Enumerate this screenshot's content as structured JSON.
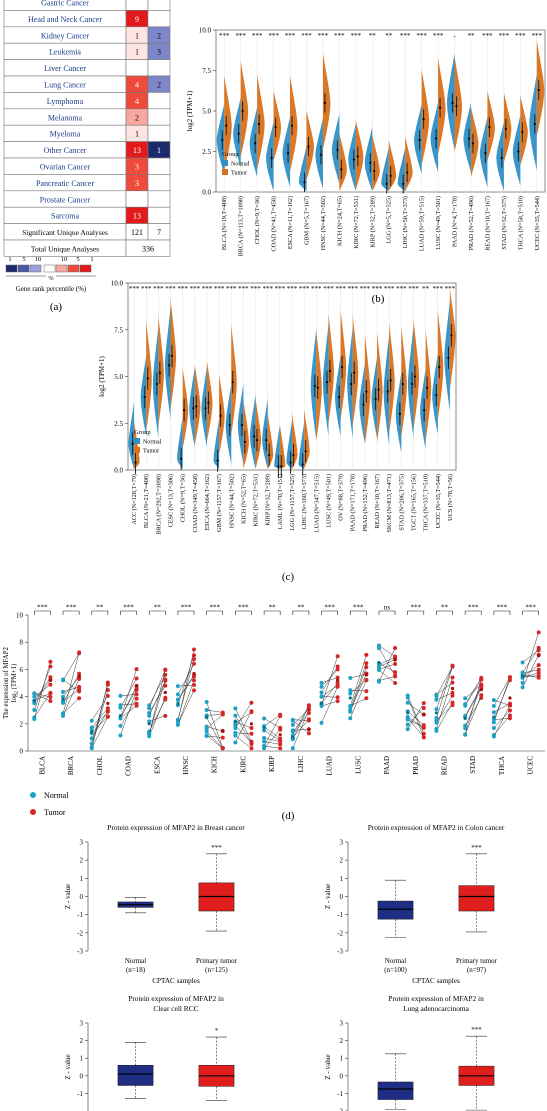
{
  "panel_labels": [
    "(a)",
    "(b)",
    "(c)",
    "(d)"
  ],
  "panel_a": {
    "rows": [
      {
        "label": "Gastric Cancer",
        "up": "",
        "down": ""
      },
      {
        "label": "Head and Neck Cancer",
        "up": "9",
        "down": ""
      },
      {
        "label": "Kidney Cancer",
        "up": "1",
        "down": "2"
      },
      {
        "label": "Leukemia",
        "up": "1",
        "down": "3"
      },
      {
        "label": "Liver Cancer",
        "up": "",
        "down": ""
      },
      {
        "label": "Lung Cancer",
        "up": "4",
        "down": "2"
      },
      {
        "label": "Lymphoma",
        "up": "4",
        "down": ""
      },
      {
        "label": "Melanoma",
        "up": "2",
        "down": ""
      },
      {
        "label": "Myeloma",
        "up": "1",
        "down": ""
      },
      {
        "label": "Other Cancer",
        "up": "13",
        "down": "1"
      },
      {
        "label": "Ovarian Cancer",
        "up": "3",
        "down": ""
      },
      {
        "label": "Pancreatic Cancer",
        "up": "3",
        "down": ""
      },
      {
        "label": "Prostate Cancer",
        "up": "",
        "down": ""
      },
      {
        "label": "Sarcoma",
        "up": "13",
        "down": ""
      }
    ],
    "sig_label": "Significant Unique Analyses",
    "sig_up": "121",
    "sig_down": "7",
    "total_label": "Total Unique Analyses",
    "total_value": "336",
    "legend_numbers": [
      "1",
      "5",
      "10",
      "10",
      "5",
      "1"
    ],
    "legend_percent": "%",
    "legend_caption": "Gene rank percentile (%)"
  },
  "chart_data": [
    {
      "id": "b",
      "type": "violin",
      "ylabel": "log2 (TPM+1)",
      "ylim": [
        0,
        10
      ],
      "yticks": [
        "0.0",
        "2.5",
        "5.0",
        "7.5",
        "10.0"
      ],
      "legend_title": "Group",
      "legend": [
        "Normal",
        "Tumor"
      ],
      "categories": [
        "BLCA (N=19,T=408)",
        "BRCA (N=113,T=1098)",
        "CHOL (N=9,T=36)",
        "COAD (N=41,T=458)",
        "ESCA (N=11,T=162)",
        "GBM (N=5,T=167)",
        "HNSC (N=44,T=502)",
        "KICH (N=24,T=65)",
        "KIRC (N=72,T=531)",
        "KIRP (N=32,T=289)",
        "LGG (N=5,T=525)",
        "LIHC (N=50,T=373)",
        "LUAD (N=59,T=515)",
        "LUSC (N=49,T=501)",
        "PAAD (N=4,T=178)",
        "PRAD (N=52,T=496)",
        "READ (N=10,T=167)",
        "STAD (N=32,T=375)",
        "THCA (N=58,T=510)",
        "UCEC (N=35,T=544)"
      ],
      "significance": [
        "***",
        "***",
        "***",
        "***",
        "***",
        "***",
        "***",
        "***",
        "***",
        "**",
        "**",
        "***",
        "***",
        "***",
        "-",
        "**",
        "***",
        "***",
        "***",
        "***"
      ],
      "normal": [
        3.2,
        3.6,
        3.0,
        2.1,
        2.4,
        0.6,
        2.3,
        2.6,
        2.0,
        1.8,
        0.5,
        0.5,
        3.2,
        3.3,
        5.5,
        3.3,
        2.4,
        2.1,
        2.5,
        4.2
      ],
      "tumor": [
        4.1,
        5.0,
        4.2,
        4.0,
        4.1,
        2.8,
        5.5,
        1.4,
        2.2,
        1.3,
        1.0,
        1.2,
        4.5,
        5.2,
        5.3,
        3.0,
        4.0,
        3.9,
        3.7,
        6.3
      ]
    },
    {
      "id": "c",
      "type": "violin",
      "ylabel": "log2 (TPM+1)",
      "ylim": [
        0,
        10
      ],
      "yticks": [
        "0.0",
        "2.5",
        "5.0",
        "7.5",
        "10.0"
      ],
      "legend_title": "Group",
      "legend": [
        "Normal",
        "Tumor"
      ],
      "categories": [
        "ACC (N=128,T=79)",
        "BLCA (N=21,T=408)",
        "BRCA (N=292,T=1098)",
        "CESC (N=13,T=306)",
        "CHOL (N=9,T=36)",
        "COAD (N=349,T=458)",
        "ESCA (N=664,T=162)",
        "GBM (N=1157,T=167)",
        "HNSC (N=44,T=502)",
        "KICH (N=52,T=65)",
        "KIRC (N=72,T=531)",
        "KIRP (N=32,T=289)",
        "LAML (N=70,T=151)",
        "LGG (N=1157,T=525)",
        "LIHC (N=160,T=373)",
        "LUAD (N=347,T=515)",
        "LUSC (N=49,T=501)",
        "OV (N=88,T=379)",
        "PAAD (N=171,T=178)",
        "PRAD (N=152,T=496)",
        "READ (N=10,T=167)",
        "SKCM (N=813,T=471)",
        "STAD (N=206,T=375)",
        "TGCT (N=165,T=156)",
        "THCA (N=337,T=510)",
        "UCEC (N=35,T=544)",
        "UCS (N=78,T=56)"
      ],
      "significance": [
        "***",
        "***",
        "***",
        "***",
        "***",
        "***",
        "***",
        "***",
        "***",
        "***",
        "***",
        "***",
        "***",
        "***",
        "***",
        "***",
        "***",
        "***",
        "***",
        "***",
        "***",
        "***",
        "***",
        "***",
        "**",
        "***",
        "***"
      ],
      "normal": [
        1.4,
        3.9,
        4.6,
        5.6,
        0.6,
        3.3,
        3.3,
        0.5,
        2.4,
        2.4,
        1.8,
        1.6,
        0.2,
        0.4,
        0.3,
        4.5,
        4.7,
        3.9,
        4.6,
        3.5,
        3.8,
        4.2,
        3.0,
        4.6,
        3.2,
        4.0,
        6.0
      ],
      "tumor": [
        0.4,
        4.9,
        5.2,
        6.1,
        3.2,
        3.4,
        3.6,
        2.9,
        4.7,
        1.5,
        1.6,
        0.8,
        0.2,
        0.8,
        1.0,
        4.4,
        5.3,
        5.5,
        5.2,
        4.2,
        4.3,
        4.8,
        4.6,
        5.0,
        4.4,
        5.5,
        7.2
      ]
    },
    {
      "id": "d",
      "type": "paired_scatter",
      "ylabel": "The expression of MFAP2",
      "ylabel2": "log",
      "ylabel3": "2",
      "ylabel4": " (TPM+1)",
      "ylim": [
        0,
        10
      ],
      "yticks": [
        "0",
        "2",
        "4",
        "6",
        "8",
        "10"
      ],
      "categories": [
        "BLCA",
        "BRCA",
        "CHOL",
        "COAD",
        "ESCA",
        "HNSC",
        "KICH",
        "KIRC",
        "KIRP",
        "LIHC",
        "LUAD",
        "LUSC",
        "PAAD",
        "PRAD",
        "READ",
        "STAD",
        "THCA",
        "UCEC"
      ],
      "significance": [
        "***",
        "***",
        "**",
        "***",
        "**",
        "***",
        "***",
        "***",
        "**",
        "**",
        "***",
        "***",
        "ns",
        "***",
        "**",
        "***",
        "***",
        "***"
      ],
      "normal": [
        3.7,
        3.8,
        1.4,
        2.6,
        2.0,
        3.5,
        2.5,
        2.2,
        1.7,
        1.0,
        3.5,
        3.9,
        6.5,
        2.8,
        2.8,
        2.4,
        2.5,
        5.5
      ],
      "tumor": [
        5.2,
        5.5,
        3.5,
        4.8,
        4.3,
        5.7,
        1.5,
        2.0,
        1.2,
        1.6,
        5.2,
        5.6,
        6.7,
        2.7,
        4.6,
        4.5,
        3.9,
        7.0
      ],
      "legend": [
        "Normal",
        "Tumor"
      ],
      "colors": {
        "normal": "#1ea1c4",
        "tumor": "#d62728"
      }
    },
    {
      "id": "e1",
      "type": "box",
      "title": "Protein expression of MFAP2 in Breast cancer",
      "ylabel": "Z - value",
      "ylim": [
        -3,
        3
      ],
      "yticks": [
        "3",
        "2",
        "1",
        "0",
        "-1",
        "-2",
        "-3"
      ],
      "xlabel": "CPTAC samples",
      "groups": [
        {
          "name": "Normal",
          "n": "(n=18)",
          "min": -0.9,
          "q1": -0.6,
          "median": -0.45,
          "q3": -0.3,
          "max": -0.05,
          "color": "#1f2d85"
        },
        {
          "name": "Primary tumor",
          "n": "(n=125)",
          "min": -1.9,
          "q1": -0.8,
          "median": 0.0,
          "q3": 0.75,
          "max": 2.35,
          "color": "#e01e1e"
        }
      ],
      "significance": "***"
    },
    {
      "id": "e2",
      "type": "box",
      "title": "Protein expression of MFAP2 in Colon cancer",
      "ylabel": "Z - value",
      "ylim": [
        -3,
        3
      ],
      "yticks": [
        "3",
        "2",
        "1",
        "0",
        "-1",
        "-2",
        "-3"
      ],
      "xlabel": "CPTAC samples",
      "groups": [
        {
          "name": "Normal",
          "n": "(n=100)",
          "min": -2.25,
          "q1": -1.25,
          "median": -0.7,
          "q3": -0.25,
          "max": 0.9,
          "color": "#1f2d85"
        },
        {
          "name": "Primary tumor",
          "n": "(n=97)",
          "min": -1.95,
          "q1": -0.8,
          "median": 0.0,
          "q3": 0.6,
          "max": 2.35,
          "color": "#e01e1e"
        }
      ],
      "significance": "***"
    },
    {
      "id": "e3",
      "type": "box",
      "title": "Protein expression of MFAP2 in",
      "title2": "Clear cell RCC",
      "ylabel": "Z - value",
      "ylim": [
        -2,
        3
      ],
      "yticks": [
        "3",
        "2",
        "1",
        "0",
        "-1"
      ],
      "groups": [
        {
          "name": "",
          "n": "",
          "min": -1.3,
          "q1": -0.55,
          "median": 0.1,
          "q3": 0.6,
          "max": 1.9,
          "color": "#1f2d85"
        },
        {
          "name": "",
          "n": "",
          "min": -1.4,
          "q1": -0.6,
          "median": 0.0,
          "q3": 0.6,
          "max": 2.2,
          "color": "#e01e1e"
        }
      ],
      "significance": "*"
    },
    {
      "id": "e4",
      "type": "box",
      "title": "Protein expression of MFAP2 in",
      "title2": "Lung adenocarcinoma",
      "ylabel": "Z - value",
      "ylim": [
        -2,
        3
      ],
      "yticks": [
        "3",
        "2",
        "1",
        "0",
        "-1",
        "-2"
      ],
      "groups": [
        {
          "name": "",
          "n": "",
          "min": -1.9,
          "q1": -1.35,
          "median": -0.75,
          "q3": -0.35,
          "max": 1.25,
          "color": "#1f2d85"
        },
        {
          "name": "",
          "n": "",
          "min": -1.95,
          "q1": -0.55,
          "median": 0.0,
          "q3": 0.55,
          "max": 2.25,
          "color": "#e01e1e"
        }
      ],
      "significance": "***"
    }
  ]
}
